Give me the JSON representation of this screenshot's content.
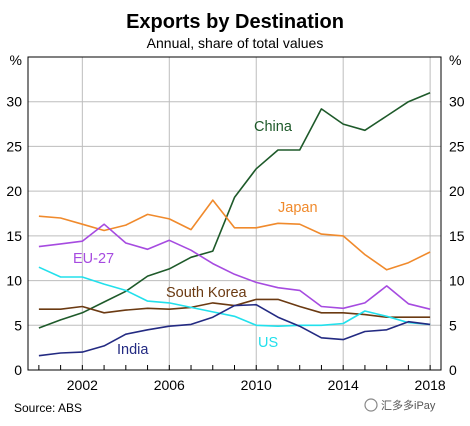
{
  "header": {
    "title": "Exports by Destination",
    "subtitle": "Annual, share of total values"
  },
  "footer": {
    "source": "Source:   ABS",
    "watermark": "汇多多iPay"
  },
  "colors": {
    "China": "#1e5a2a",
    "Japan": "#f08a2c",
    "EU-27": "#a64be0",
    "South Korea": "#6b3a12",
    "US": "#22e0ec",
    "India": "#232a82"
  },
  "chart_data": {
    "type": "line",
    "yunit": "%",
    "ylim": [
      0,
      35
    ],
    "xlim": [
      1999.5,
      2018.5
    ],
    "yticks": [
      0,
      5,
      10,
      15,
      20,
      25,
      30
    ],
    "xticks": [
      2002,
      2006,
      2010,
      2014,
      2018
    ],
    "grid": true,
    "x": [
      2000,
      2001,
      2002,
      2003,
      2004,
      2005,
      2006,
      2007,
      2008,
      2009,
      2010,
      2011,
      2012,
      2013,
      2014,
      2015,
      2016,
      2017,
      2018
    ],
    "series": [
      {
        "name": "China",
        "values": [
          4.7,
          5.6,
          6.4,
          7.6,
          8.8,
          10.5,
          11.3,
          12.6,
          13.3,
          19.3,
          22.5,
          24.6,
          24.6,
          29.2,
          27.5,
          26.8,
          28.4,
          30.0,
          31.0
        ]
      },
      {
        "name": "Japan",
        "values": [
          17.2,
          17.0,
          16.3,
          15.6,
          16.2,
          17.4,
          16.9,
          15.7,
          19.0,
          15.9,
          15.9,
          16.4,
          16.3,
          15.2,
          15.0,
          12.9,
          11.2,
          12.0,
          13.2
        ]
      },
      {
        "name": "EU-27",
        "values": [
          13.8,
          14.1,
          14.4,
          16.3,
          14.2,
          13.5,
          14.5,
          13.4,
          11.9,
          10.7,
          9.8,
          9.2,
          8.9,
          7.1,
          6.9,
          7.5,
          9.4,
          7.4,
          6.8
        ]
      },
      {
        "name": "South Korea",
        "values": [
          6.8,
          6.8,
          7.1,
          6.4,
          6.7,
          6.9,
          6.8,
          7.0,
          7.5,
          7.2,
          7.9,
          7.9,
          7.1,
          6.4,
          6.4,
          6.2,
          5.9,
          5.9,
          5.9
        ]
      },
      {
        "name": "US",
        "values": [
          11.5,
          10.4,
          10.4,
          9.6,
          8.9,
          7.7,
          7.5,
          7.0,
          6.5,
          6.0,
          5.0,
          4.9,
          5.0,
          5.0,
          5.2,
          6.6,
          6.0,
          5.3,
          5.1
        ]
      },
      {
        "name": "India",
        "values": [
          1.6,
          1.9,
          2.0,
          2.7,
          4.0,
          4.5,
          4.9,
          5.1,
          5.9,
          7.2,
          7.3,
          5.9,
          4.9,
          3.6,
          3.4,
          4.3,
          4.5,
          5.4,
          5.1
        ]
      }
    ],
    "labels": [
      {
        "series": "China",
        "text": "China"
      },
      {
        "series": "Japan",
        "text": "Japan"
      },
      {
        "series": "EU-27",
        "text": "EU-27"
      },
      {
        "series": "South Korea",
        "text": "South Korea"
      },
      {
        "series": "US",
        "text": "US"
      },
      {
        "series": "India",
        "text": "India"
      }
    ]
  }
}
